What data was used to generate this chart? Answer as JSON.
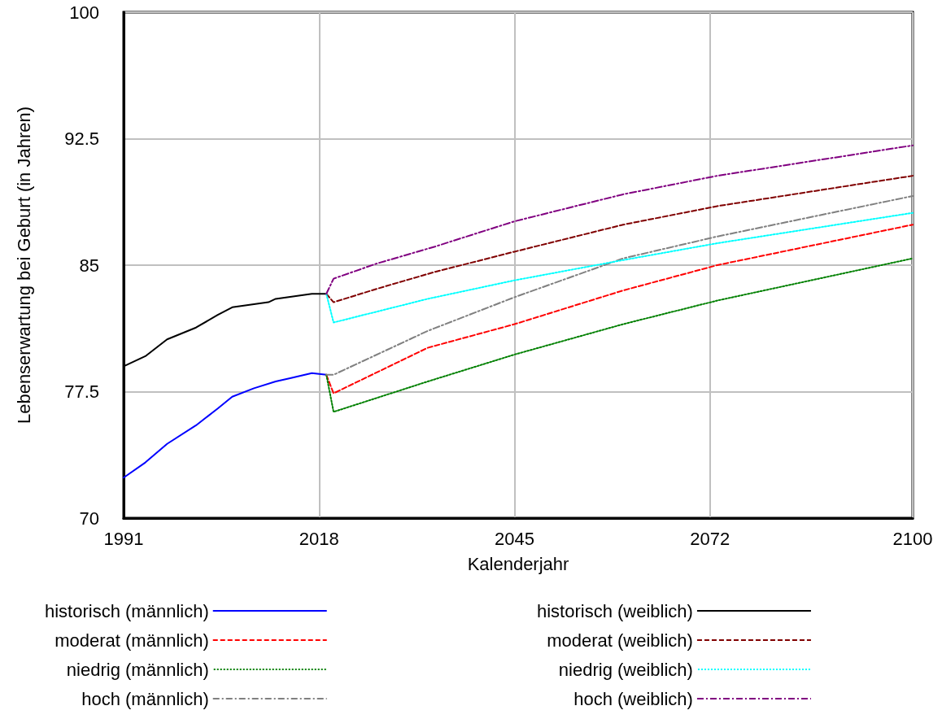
{
  "chart_data": {
    "type": "line",
    "xlabel": "Kalenderjahr",
    "ylabel": "Lebenserwartung bei Geburt (in Jahren)",
    "xlim": [
      1991,
      2100
    ],
    "xticks": [
      1991,
      2018,
      2045,
      2072,
      2100
    ],
    "ylim": [
      70,
      100
    ],
    "yticks": [
      70,
      77.5,
      85,
      92.5,
      100
    ],
    "grid": true,
    "legend": "bottom",
    "marker": "none",
    "series": [
      {
        "name": "historisch (männlich)",
        "color": "#0000ff",
        "line_style": "solid",
        "x": [
          1991,
          1994,
          1997,
          2001,
          2004,
          2006,
          2009,
          2012,
          2014,
          2017,
          2019
        ],
        "values": [
          72.4,
          73.3,
          74.4,
          75.5,
          76.5,
          77.2,
          77.7,
          78.1,
          78.3,
          78.6,
          78.5
        ]
      },
      {
        "name": "moderat (männlich)",
        "color": "#ff0000",
        "line_style": "dashed",
        "x": [
          2019,
          2020,
          2033,
          2045,
          2060,
          2073,
          2100
        ],
        "values": [
          78.5,
          77.4,
          80.1,
          81.5,
          83.5,
          85.0,
          87.4
        ]
      },
      {
        "name": "niedrig (männlich)",
        "color": "#008000",
        "line_style": "dotted",
        "x": [
          2019,
          2020,
          2033,
          2045,
          2060,
          2073,
          2100
        ],
        "values": [
          78.5,
          76.3,
          78.1,
          79.7,
          81.5,
          82.9,
          85.4
        ]
      },
      {
        "name": "hoch (männlich)",
        "color": "#808080",
        "line_style": "dashdot",
        "x": [
          2019,
          2020,
          2033,
          2045,
          2060,
          2073,
          2100
        ],
        "values": [
          78.5,
          78.5,
          81.1,
          83.1,
          85.4,
          86.7,
          89.1
        ]
      },
      {
        "name": "historisch (weiblich)",
        "color": "#000000",
        "line_style": "solid",
        "x": [
          1991,
          1994,
          1997,
          1999,
          2001,
          2004,
          2006,
          2011,
          2012,
          2017,
          2019
        ],
        "values": [
          79.0,
          79.6,
          80.6,
          80.95,
          81.3,
          82.05,
          82.5,
          82.8,
          83.0,
          83.3,
          83.3
        ]
      },
      {
        "name": "moderat (weiblich)",
        "color": "#800000",
        "line_style": "dashed",
        "x": [
          2019,
          2020,
          2026,
          2034,
          2045,
          2060,
          2073,
          2100
        ],
        "values": [
          83.3,
          82.8,
          83.6,
          84.6,
          85.8,
          87.4,
          88.5,
          90.3
        ]
      },
      {
        "name": "niedrig (weiblich)",
        "color": "#00ffff",
        "line_style": "dotted",
        "x": [
          2019,
          2020,
          2033,
          2045,
          2060,
          2073,
          2100
        ],
        "values": [
          83.3,
          81.6,
          83.0,
          84.1,
          85.3,
          86.3,
          88.1
        ]
      },
      {
        "name": "hoch (weiblich)",
        "color": "#800080",
        "line_style": "dashdot",
        "x": [
          2019,
          2020,
          2026,
          2034,
          2045,
          2060,
          2073,
          2100
        ],
        "values": [
          83.3,
          84.2,
          85.1,
          86.1,
          87.6,
          89.2,
          90.3,
          92.1
        ]
      }
    ]
  }
}
